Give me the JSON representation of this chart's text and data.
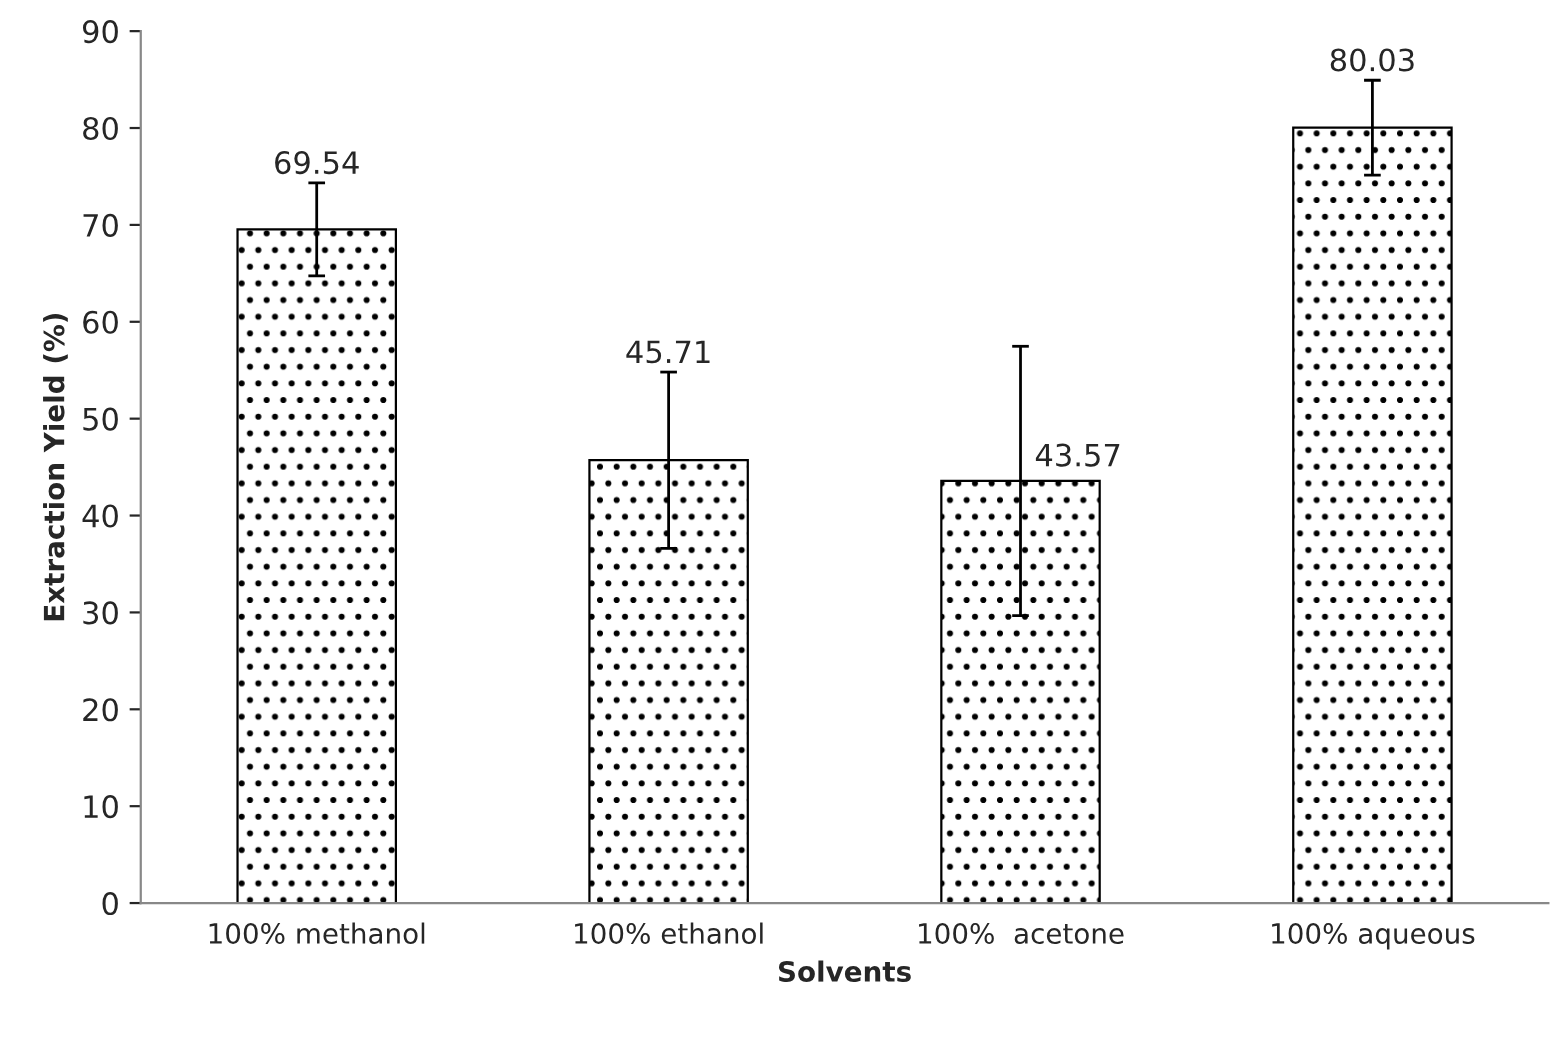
{
  "chart_data": {
    "type": "bar",
    "xlabel": "Solvents",
    "ylabel": "Extraction Yield (%)",
    "categories": [
      "100% methanol",
      "100% ethanol",
      "100%  acetone",
      "100% aqueous"
    ],
    "values": [
      69.54,
      45.71,
      43.57,
      80.03
    ],
    "errors": [
      4.8,
      9.1,
      13.9,
      4.9
    ],
    "ylim": [
      0,
      90
    ],
    "yticks": [
      0,
      10,
      20,
      30,
      40,
      50,
      60,
      70,
      80,
      90
    ],
    "data_labels": true,
    "grid": false,
    "legend": false
  }
}
